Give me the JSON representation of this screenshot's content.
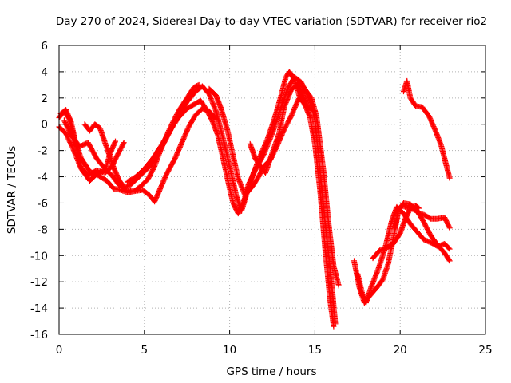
{
  "chart_data": {
    "type": "scatter",
    "title": "Day 270 of 2024, Sidereal Day-to-day VTEC variation (SDTVAR) for receiver rio2",
    "xlabel": "GPS time / hours",
    "ylabel": "SDTVAR / TECUs",
    "xlim": [
      0,
      25
    ],
    "ylim": [
      -16,
      6
    ],
    "xticks": [
      0,
      5,
      10,
      15,
      20,
      25
    ],
    "yticks": [
      -16,
      -14,
      -12,
      -10,
      -8,
      -6,
      -4,
      -2,
      0,
      2,
      4,
      6
    ],
    "grid": true,
    "marker": "+",
    "color": "#ff0000",
    "series": [
      {
        "points": [
          [
            0.0,
            0.5
          ],
          [
            0.3,
            1.0
          ],
          [
            0.6,
            0.4
          ],
          [
            0.9,
            -1.2
          ],
          [
            1.3,
            -2.6
          ],
          [
            1.8,
            -3.6
          ],
          [
            2.3,
            -3.9
          ],
          [
            2.8,
            -4.3
          ],
          [
            3.2,
            -4.9
          ],
          [
            3.6,
            -5.0
          ],
          [
            4.0,
            -5.2
          ],
          [
            4.4,
            -5.1
          ],
          [
            4.8,
            -4.7
          ],
          [
            5.2,
            -4.2
          ],
          [
            5.6,
            -3.2
          ],
          [
            6.0,
            -1.8
          ],
          [
            6.5,
            -0.3
          ],
          [
            7.0,
            1.0
          ],
          [
            7.5,
            2.0
          ],
          [
            7.9,
            2.8
          ],
          [
            8.2,
            3.0
          ]
        ]
      },
      {
        "points": [
          [
            0.1,
            0.8
          ],
          [
            0.4,
            1.1
          ],
          [
            0.7,
            0.2
          ],
          [
            1.0,
            -1.6
          ],
          [
            1.3,
            -3.3
          ],
          [
            1.7,
            -3.9
          ],
          [
            2.2,
            -3.5
          ],
          [
            2.7,
            -3.7
          ],
          [
            3.1,
            -3.2
          ],
          [
            3.4,
            -2.4
          ],
          [
            3.8,
            -1.4
          ]
        ]
      },
      {
        "points": [
          [
            0.0,
            -0.2
          ],
          [
            0.4,
            -0.7
          ],
          [
            0.8,
            -1.8
          ],
          [
            1.3,
            -3.4
          ],
          [
            1.8,
            -4.3
          ],
          [
            2.2,
            -3.8
          ],
          [
            2.7,
            -3.5
          ],
          [
            3.0,
            -2.2
          ],
          [
            3.3,
            -1.3
          ]
        ]
      },
      {
        "points": [
          [
            0.3,
            0.3
          ],
          [
            0.7,
            -0.8
          ],
          [
            1.2,
            -1.7
          ],
          [
            1.7,
            -1.4
          ],
          [
            2.2,
            -2.6
          ],
          [
            2.7,
            -3.4
          ],
          [
            3.1,
            -3.9
          ],
          [
            3.5,
            -4.6
          ],
          [
            3.9,
            -5.0
          ],
          [
            4.4,
            -5.1
          ],
          [
            4.9,
            -5.0
          ],
          [
            5.3,
            -5.4
          ],
          [
            5.6,
            -5.9
          ],
          [
            5.9,
            -5.0
          ],
          [
            6.3,
            -3.8
          ],
          [
            6.8,
            -2.6
          ],
          [
            7.2,
            -1.4
          ],
          [
            7.6,
            -0.2
          ],
          [
            8.0,
            0.7
          ],
          [
            8.4,
            1.2
          ],
          [
            8.8,
            1.0
          ],
          [
            9.2,
            0.4
          ]
        ]
      },
      {
        "points": [
          [
            1.5,
            0.0
          ],
          [
            1.8,
            -0.5
          ],
          [
            2.1,
            0.0
          ],
          [
            2.4,
            -0.3
          ],
          [
            2.8,
            -1.8
          ],
          [
            3.2,
            -3.3
          ],
          [
            3.5,
            -4.2
          ],
          [
            3.8,
            -4.8
          ],
          [
            4.2,
            -4.6
          ],
          [
            4.6,
            -4.1
          ],
          [
            5.0,
            -3.6
          ],
          [
            5.4,
            -3.1
          ],
          [
            5.8,
            -2.3
          ],
          [
            6.2,
            -1.3
          ],
          [
            6.6,
            -0.3
          ],
          [
            7.0,
            0.5
          ],
          [
            7.5,
            1.2
          ],
          [
            7.9,
            1.5
          ],
          [
            8.3,
            1.8
          ],
          [
            8.7,
            1.0
          ],
          [
            9.0,
            0.2
          ],
          [
            9.3,
            -0.8
          ],
          [
            9.6,
            -2.5
          ],
          [
            9.9,
            -4.3
          ],
          [
            10.2,
            -6.0
          ],
          [
            10.5,
            -6.8
          ],
          [
            10.8,
            -6.0
          ],
          [
            11.1,
            -4.6
          ],
          [
            11.5,
            -3.5
          ],
          [
            12.0,
            -2.3
          ],
          [
            12.5,
            -0.7
          ],
          [
            13.0,
            1.2
          ],
          [
            13.4,
            2.7
          ],
          [
            13.8,
            3.6
          ],
          [
            14.2,
            3.2
          ],
          [
            14.5,
            2.4
          ],
          [
            14.8,
            1.5
          ],
          [
            15.0,
            0.3
          ],
          [
            15.3,
            -3.5
          ],
          [
            15.6,
            -7.5
          ],
          [
            15.9,
            -11.0
          ],
          [
            16.2,
            -15.2
          ]
        ]
      },
      {
        "points": [
          [
            4.0,
            -4.4
          ],
          [
            4.5,
            -4.0
          ],
          [
            5.0,
            -3.4
          ],
          [
            5.5,
            -2.6
          ],
          [
            6.0,
            -1.6
          ],
          [
            6.5,
            -0.5
          ],
          [
            7.0,
            0.6
          ],
          [
            7.5,
            1.7
          ],
          [
            8.0,
            2.5
          ],
          [
            8.4,
            2.9
          ],
          [
            8.8,
            2.3
          ],
          [
            9.2,
            1.0
          ],
          [
            9.6,
            -1.0
          ],
          [
            10.0,
            -3.2
          ],
          [
            10.4,
            -5.5
          ],
          [
            10.7,
            -6.6
          ],
          [
            11.0,
            -5.3
          ],
          [
            11.4,
            -3.7
          ],
          [
            11.8,
            -2.4
          ],
          [
            12.2,
            -1.2
          ],
          [
            12.6,
            0.3
          ],
          [
            13.0,
            2.1
          ],
          [
            13.3,
            3.6
          ],
          [
            13.5,
            4.0
          ],
          [
            13.8,
            3.4
          ],
          [
            14.1,
            2.1
          ],
          [
            14.4,
            1.5
          ],
          [
            14.7,
            0.6
          ],
          [
            15.0,
            -1.5
          ],
          [
            15.3,
            -5.0
          ],
          [
            15.6,
            -9.5
          ],
          [
            15.9,
            -13.5
          ],
          [
            16.1,
            -15.4
          ]
        ]
      },
      {
        "points": [
          [
            8.8,
            2.7
          ],
          [
            9.2,
            2.2
          ],
          [
            9.5,
            1.2
          ],
          [
            9.9,
            -0.6
          ],
          [
            10.2,
            -2.4
          ],
          [
            10.5,
            -4.1
          ],
          [
            10.9,
            -5.4
          ],
          [
            11.3,
            -4.8
          ],
          [
            11.7,
            -4.0
          ],
          [
            12.0,
            -3.2
          ],
          [
            12.4,
            -2.7
          ],
          [
            12.8,
            -1.6
          ],
          [
            13.2,
            -0.4
          ],
          [
            13.6,
            0.6
          ],
          [
            14.0,
            1.8
          ],
          [
            14.4,
            2.7
          ],
          [
            14.8,
            2.0
          ],
          [
            15.1,
            0.6
          ],
          [
            15.5,
            -3.5
          ],
          [
            15.8,
            -7.5
          ],
          [
            16.1,
            -10.8
          ],
          [
            16.4,
            -12.3
          ]
        ]
      },
      {
        "points": [
          [
            11.2,
            -1.5
          ],
          [
            11.5,
            -2.6
          ],
          [
            11.8,
            -3.2
          ],
          [
            12.1,
            -3.7
          ],
          [
            12.5,
            -2.2
          ],
          [
            12.9,
            -0.7
          ],
          [
            13.2,
            1.3
          ],
          [
            13.6,
            2.6
          ],
          [
            14.0,
            3.1
          ],
          [
            14.3,
            2.2
          ],
          [
            14.6,
            1.3
          ],
          [
            15.0,
            1.0
          ]
        ]
      },
      {
        "points": [
          [
            17.3,
            -10.4
          ],
          [
            17.6,
            -12.4
          ],
          [
            17.9,
            -13.6
          ],
          [
            18.2,
            -13.1
          ],
          [
            18.6,
            -12.5
          ],
          [
            19.0,
            -11.8
          ],
          [
            19.3,
            -10.6
          ],
          [
            19.6,
            -8.7
          ],
          [
            19.9,
            -6.6
          ],
          [
            20.2,
            -6.0
          ],
          [
            20.6,
            -6.1
          ],
          [
            21.0,
            -6.7
          ],
          [
            21.4,
            -6.9
          ],
          [
            21.8,
            -7.2
          ],
          [
            22.2,
            -7.2
          ],
          [
            22.6,
            -7.1
          ],
          [
            22.9,
            -7.9
          ]
        ]
      },
      {
        "points": [
          [
            17.5,
            -11.4
          ],
          [
            17.8,
            -13.0
          ],
          [
            18.0,
            -13.6
          ],
          [
            18.3,
            -12.4
          ],
          [
            18.7,
            -11.1
          ],
          [
            19.1,
            -9.5
          ],
          [
            19.5,
            -7.4
          ],
          [
            19.8,
            -6.3
          ],
          [
            20.2,
            -6.8
          ],
          [
            20.6,
            -7.6
          ],
          [
            21.0,
            -8.2
          ],
          [
            21.4,
            -8.8
          ],
          [
            21.8,
            -9.0
          ],
          [
            22.2,
            -9.3
          ],
          [
            22.6,
            -9.1
          ],
          [
            22.9,
            -9.5
          ]
        ]
      },
      {
        "points": [
          [
            18.4,
            -10.2
          ],
          [
            18.8,
            -9.6
          ],
          [
            19.2,
            -9.4
          ],
          [
            19.6,
            -9.1
          ],
          [
            20.0,
            -8.3
          ],
          [
            20.3,
            -7.2
          ],
          [
            20.6,
            -6.4
          ],
          [
            21.0,
            -6.6
          ],
          [
            21.4,
            -7.5
          ],
          [
            21.8,
            -8.5
          ],
          [
            22.2,
            -9.2
          ],
          [
            22.6,
            -9.8
          ],
          [
            22.9,
            -10.4
          ]
        ]
      },
      {
        "points": [
          [
            19.7,
            -7.9
          ],
          [
            19.9,
            -6.5
          ],
          [
            20.1,
            -6.2
          ],
          [
            20.5,
            -6.4
          ],
          [
            20.9,
            -6.2
          ],
          [
            21.1,
            -6.4
          ]
        ]
      },
      {
        "points": [
          [
            20.2,
            2.5
          ],
          [
            20.4,
            3.3
          ],
          [
            20.6,
            2.0
          ],
          [
            20.9,
            1.4
          ],
          [
            21.3,
            1.3
          ],
          [
            21.7,
            0.6
          ],
          [
            22.1,
            -0.6
          ],
          [
            22.4,
            -1.6
          ],
          [
            22.6,
            -2.6
          ],
          [
            22.8,
            -3.6
          ],
          [
            22.9,
            -4.1
          ]
        ]
      }
    ]
  }
}
